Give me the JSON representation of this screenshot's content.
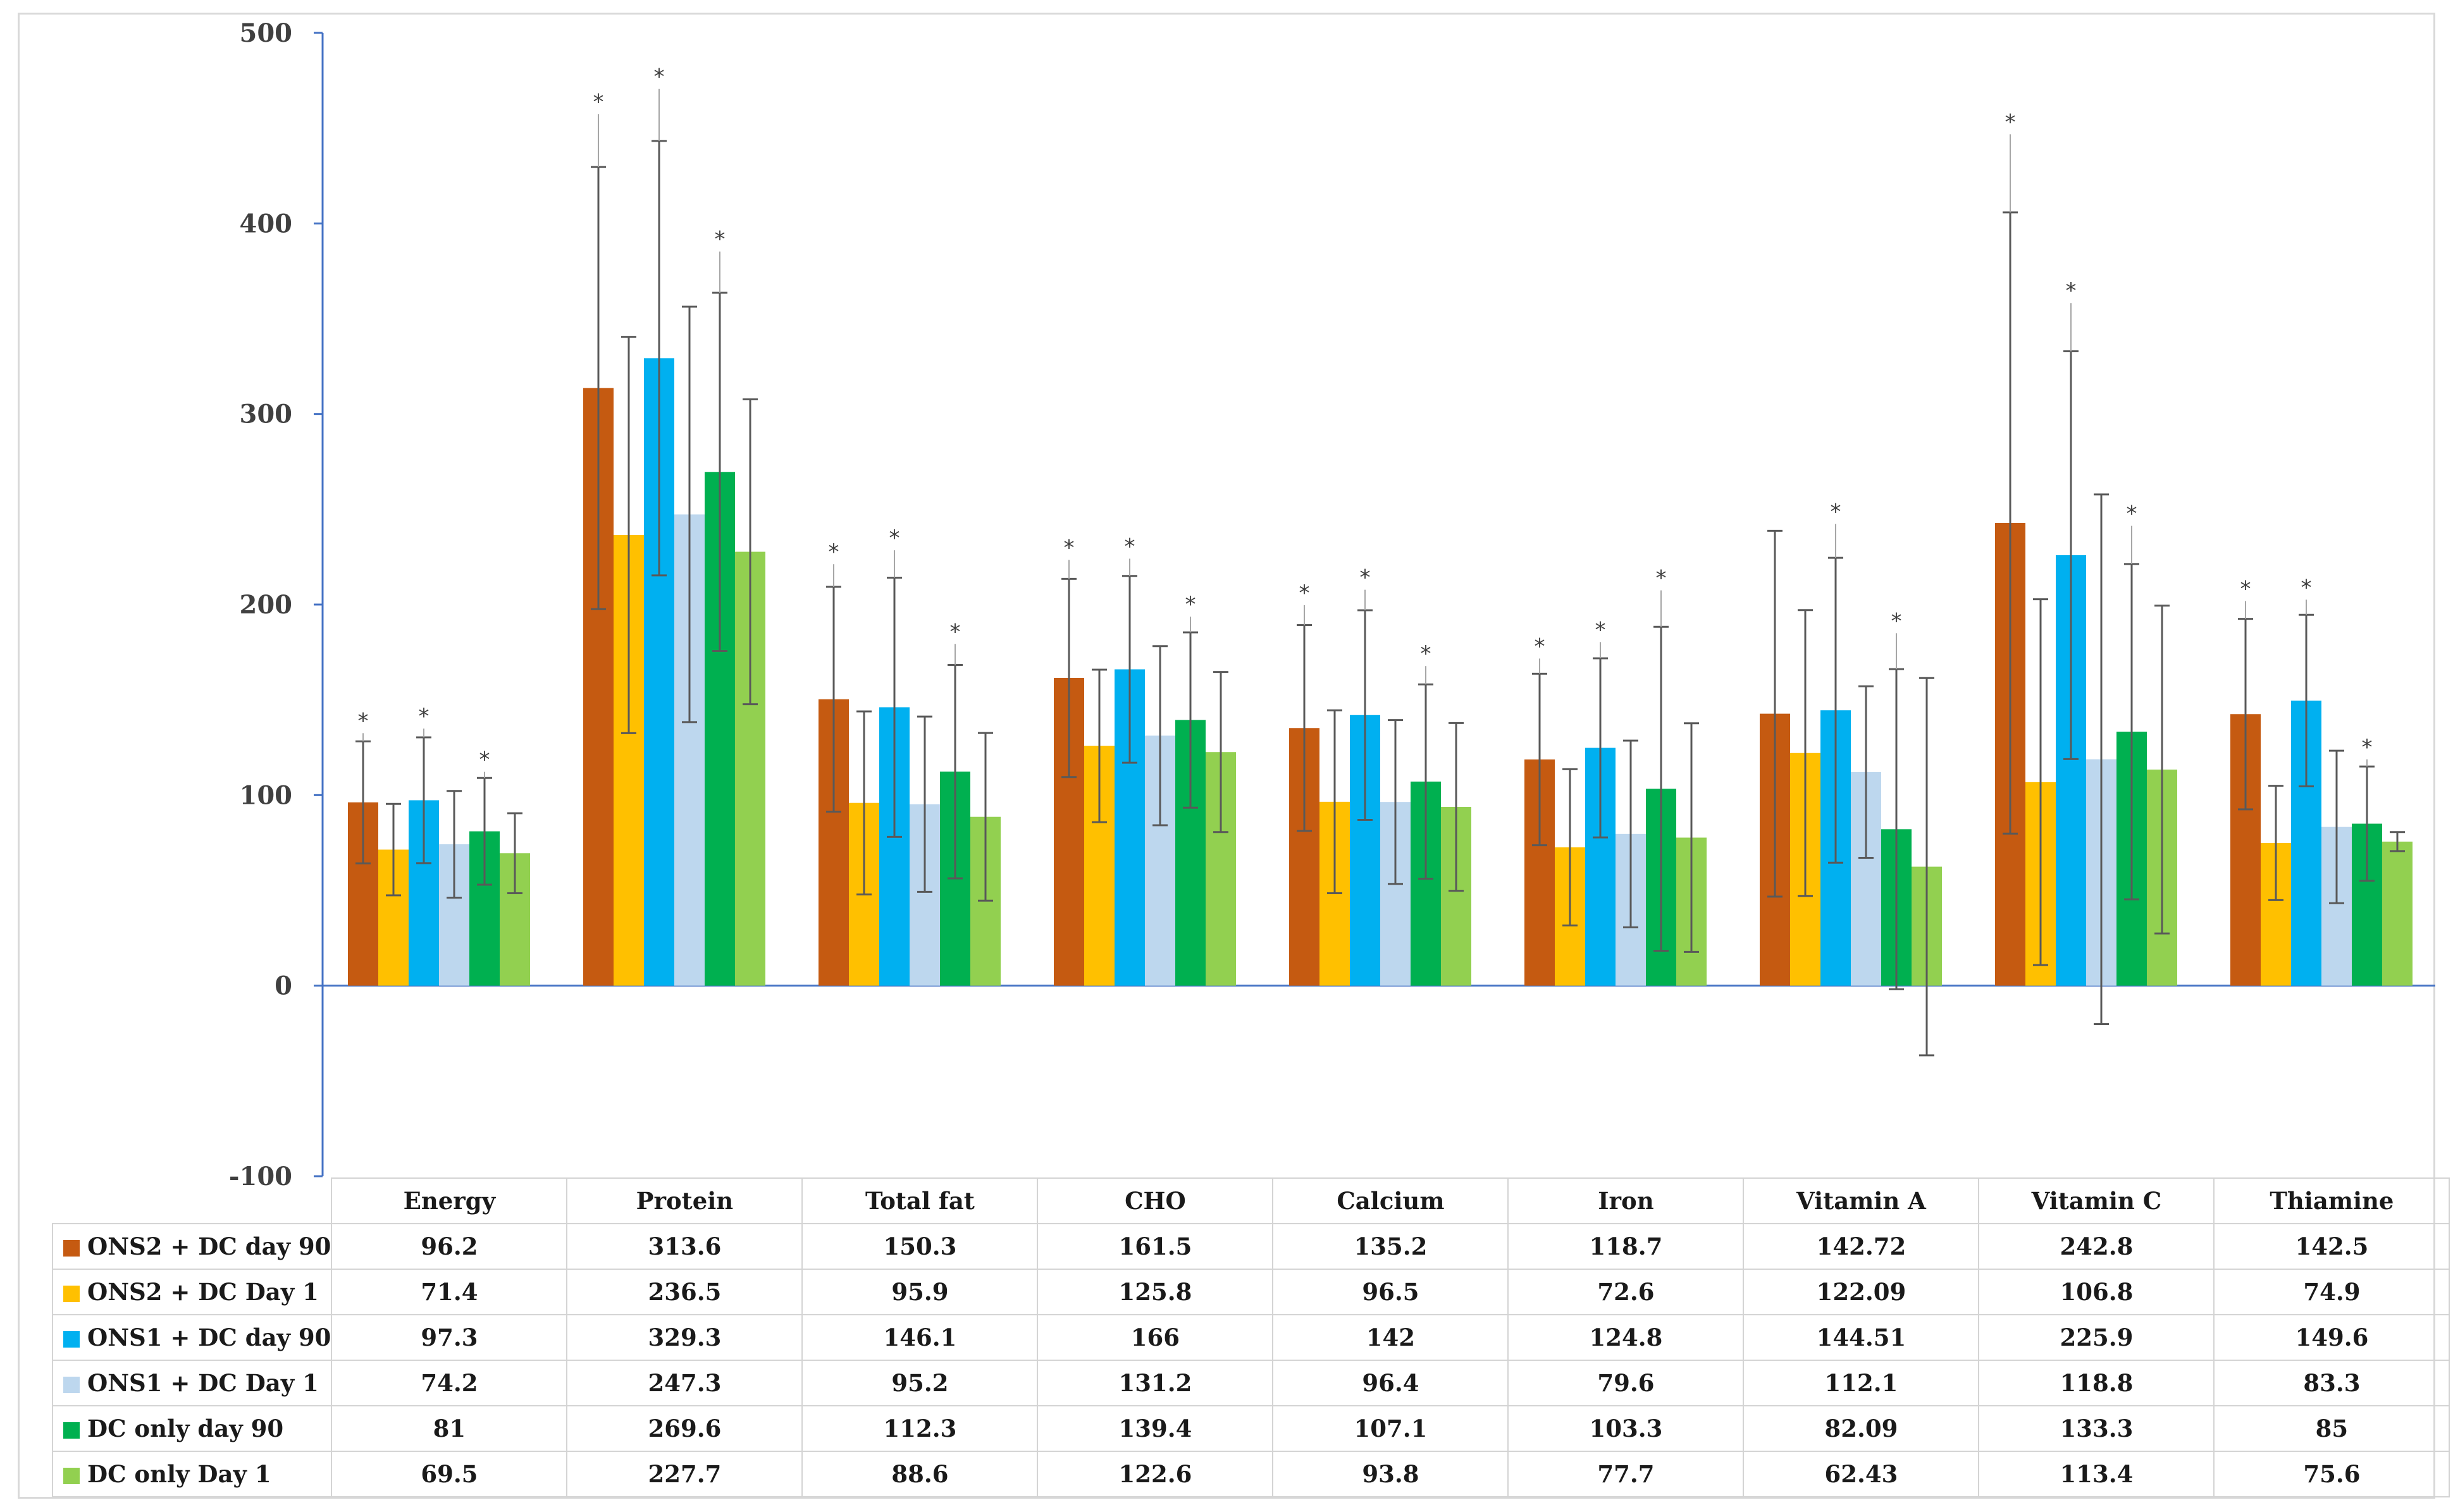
{
  "chart_data": {
    "type": "bar",
    "categories": [
      "Energy",
      "Protein",
      "Total fat",
      "CHO",
      "Calcium",
      "Iron",
      "Vitamin A",
      "Vitamin C",
      "Thiamine"
    ],
    "ylim": [
      -100,
      500
    ],
    "yticks": [
      "500",
      "400",
      "300",
      "200",
      "100",
      "0",
      "-100"
    ],
    "grid": false,
    "legend": "table-below",
    "series": [
      {
        "name": "ONS2 + DC day 90",
        "color": "#c55a11",
        "values": [
          96.2,
          313.6,
          150.3,
          161.5,
          135.2,
          118.7,
          142.72,
          242.8,
          142.5
        ],
        "labels": [
          "96.2",
          "313.6",
          "150.3",
          "161.5",
          "135.2",
          "118.7",
          "142.72",
          "242.8",
          "142.5"
        ],
        "errors": [
          32,
          116,
          59,
          52,
          54,
          45,
          96,
          163,
          50
        ],
        "significant": [
          true,
          true,
          true,
          true,
          true,
          true,
          false,
          true,
          true
        ]
      },
      {
        "name": "ONS2 + DC Day 1",
        "color": "#ffc000",
        "values": [
          71.4,
          236.5,
          95.9,
          125.8,
          96.5,
          72.6,
          122.09,
          106.8,
          74.9
        ],
        "labels": [
          "71.4",
          "236.5",
          "95.9",
          "125.8",
          "96.5",
          "72.6",
          "122.09",
          "106.8",
          "74.9"
        ],
        "errors": [
          24,
          104,
          48,
          40,
          48,
          41,
          75,
          96,
          30
        ],
        "significant": [
          false,
          false,
          false,
          false,
          false,
          false,
          false,
          false,
          false
        ]
      },
      {
        "name": "ONS1 + DC day 90",
        "color": "#00b0f0",
        "values": [
          97.3,
          329.3,
          146.1,
          166,
          142,
          124.8,
          144.51,
          225.9,
          149.6
        ],
        "labels": [
          "97.3",
          "329.3",
          "146.1",
          "166",
          "142",
          "124.8",
          "144.51",
          "225.9",
          "149.6"
        ],
        "errors": [
          33,
          114,
          68,
          49,
          55,
          47,
          80,
          107,
          45
        ],
        "significant": [
          true,
          true,
          true,
          true,
          true,
          true,
          true,
          true,
          true
        ]
      },
      {
        "name": "ONS1 + DC Day 1",
        "color": "#bdd7ee",
        "values": [
          74.2,
          247.3,
          95.2,
          131.2,
          96.4,
          79.6,
          112.1,
          118.8,
          83.3
        ],
        "labels": [
          "74.2",
          "247.3",
          "95.2",
          "131.2",
          "96.4",
          "79.6",
          "112.1",
          "118.8",
          "83.3"
        ],
        "errors": [
          28,
          109,
          46,
          47,
          43,
          49,
          45,
          139,
          40
        ],
        "significant": [
          false,
          false,
          false,
          false,
          false,
          false,
          false,
          false,
          false
        ]
      },
      {
        "name": "DC only day 90",
        "color": "#00b050",
        "values": [
          81,
          269.6,
          112.3,
          139.4,
          107.1,
          103.3,
          82.09,
          133.3,
          85
        ],
        "labels": [
          "81",
          "269.6",
          "112.3",
          "139.4",
          "107.1",
          "103.3",
          "82.09",
          "133.3",
          "85"
        ],
        "errors": [
          28,
          94,
          56,
          46,
          51,
          85,
          84,
          88,
          30
        ],
        "significant": [
          true,
          true,
          true,
          true,
          true,
          true,
          true,
          true,
          true
        ]
      },
      {
        "name": "DC only Day 1",
        "color": "#92d050",
        "values": [
          69.5,
          227.7,
          88.6,
          122.6,
          93.8,
          77.7,
          62.43,
          113.4,
          75.6
        ],
        "labels": [
          "69.5",
          "227.7",
          "88.6",
          "122.6",
          "93.8",
          "77.7",
          "62.43",
          "113.4",
          "75.6"
        ],
        "errors": [
          21,
          80,
          44,
          42,
          44,
          60,
          99,
          86,
          5
        ],
        "significant": [
          false,
          false,
          false,
          false,
          false,
          false,
          false,
          false,
          false
        ]
      }
    ],
    "significance_marker": "*"
  },
  "colors": {
    "axis": "#4472c4",
    "errorbar": "#595959",
    "gridline_table": "#d4d4d4"
  }
}
